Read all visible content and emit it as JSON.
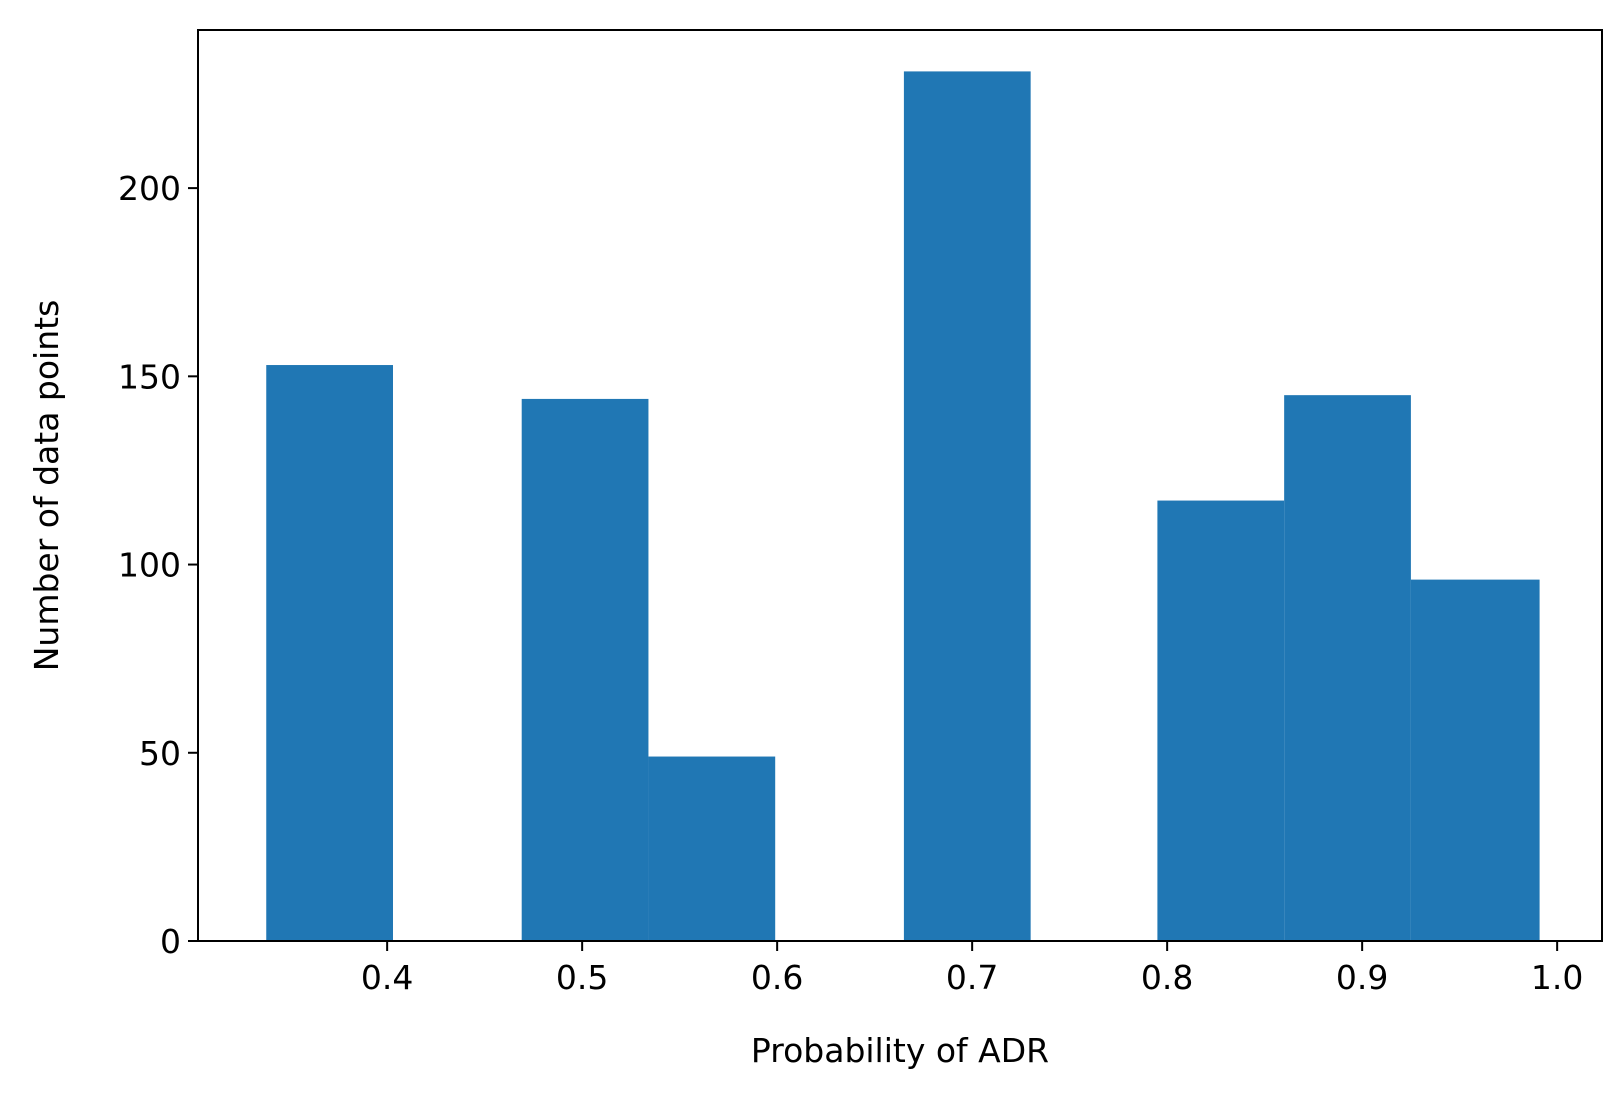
{
  "chart_data": {
    "type": "bar",
    "title": "",
    "xlabel": "Probability of ADR",
    "ylabel": "Number of data points",
    "xlim": [
      0.303,
      1.023
    ],
    "ylim": [
      0,
      242
    ],
    "bar_color": "#2077b4",
    "grid": false,
    "bins": [
      {
        "x0": 0.338,
        "x1": 0.403,
        "value": 153
      },
      {
        "x0": 0.403,
        "x1": 0.469,
        "value": 0
      },
      {
        "x0": 0.469,
        "x1": 0.534,
        "value": 144
      },
      {
        "x0": 0.534,
        "x1": 0.599,
        "value": 49
      },
      {
        "x0": 0.599,
        "x1": 0.665,
        "value": 0
      },
      {
        "x0": 0.665,
        "x1": 0.73,
        "value": 231
      },
      {
        "x0": 0.73,
        "x1": 0.795,
        "value": 0
      },
      {
        "x0": 0.795,
        "x1": 0.86,
        "value": 117
      },
      {
        "x0": 0.86,
        "x1": 0.925,
        "value": 145
      },
      {
        "x0": 0.925,
        "x1": 0.991,
        "value": 96
      }
    ],
    "xticks": [
      {
        "value": 0.4,
        "label": "0.4"
      },
      {
        "value": 0.5,
        "label": "0.5"
      },
      {
        "value": 0.6,
        "label": "0.6"
      },
      {
        "value": 0.7,
        "label": "0.7"
      },
      {
        "value": 0.8,
        "label": "0.8"
      },
      {
        "value": 0.9,
        "label": "0.9"
      },
      {
        "value": 1.0,
        "label": "1.0"
      }
    ],
    "yticks": [
      {
        "value": 0,
        "label": "0"
      },
      {
        "value": 50,
        "label": "50"
      },
      {
        "value": 100,
        "label": "100"
      },
      {
        "value": 150,
        "label": "150"
      },
      {
        "value": 200,
        "label": "200"
      }
    ]
  }
}
